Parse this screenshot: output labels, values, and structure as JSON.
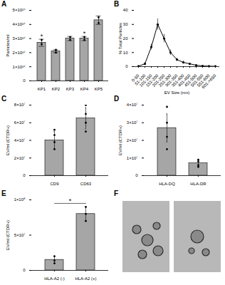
{
  "chart_data": [
    {
      "title": "A",
      "type": "bar",
      "categories": [
        "KP1",
        "KP2",
        "KP3",
        "KP4",
        "KP5"
      ],
      "values": [
        27000000000.0,
        21000000000.0,
        30000000000.0,
        30000000000.0,
        43000000000.0
      ],
      "errors": [
        2500000000.0,
        1000000000.0,
        1500000000.0,
        1500000000.0,
        3000000000.0
      ],
      "points": [
        [
          26000000000.0,
          29000000000.0
        ],
        [
          20000000000.0,
          22000000000.0
        ],
        [
          29000000000.0,
          31000000000.0
        ],
        [
          29000000000.0,
          31000000000.0
        ],
        [
          41000000000.0,
          45000000000.0
        ]
      ],
      "y_label": "Particles/ml",
      "ylim": [
        0,
        50000000000.0
      ],
      "yticks": [
        0,
        {
          "value": 10000000000.0,
          "label": "1×10¹⁰"
        },
        {
          "value": 20000000000.0,
          "label": "2×10¹⁰"
        },
        {
          "value": 30000000000.0,
          "label": "3×10¹⁰"
        },
        {
          "value": 40000000000.0,
          "label": "4×10¹⁰"
        },
        {
          "value": 50000000000.0,
          "label": "5×10¹⁰"
        }
      ],
      "color": "#a6a6a6",
      "annotations": [
        {
          "text": "*",
          "x": [
            "KP1"
          ]
        },
        {
          "text": "*",
          "x": [
            "KP4"
          ]
        }
      ]
    },
    {
      "title": "B",
      "type": "line",
      "categories": [
        "0-50",
        "51-100",
        "101-150",
        "151-200",
        "201-250",
        "251-300",
        "301-350",
        "351-400",
        "401-450",
        "451-500",
        "501-550",
        "551-600",
        "601->650"
      ],
      "values": [
        0.3,
        2,
        14,
        30,
        20,
        10,
        5,
        3,
        2,
        1,
        0.5,
        0.3,
        0.2
      ],
      "errors": [
        0.2,
        1,
        2,
        4,
        3,
        2,
        1,
        1,
        0.5,
        0.5,
        0.3,
        0.2,
        0.2
      ],
      "x_label": "EV Size (nm)",
      "y_label": "% Total Particles",
      "ylim": [
        0,
        40
      ],
      "yticks": [
        0,
        10,
        20,
        30,
        40
      ],
      "color": "#000000",
      "marker": "circle"
    },
    {
      "title": "C",
      "type": "bar",
      "categories": [
        "CD9",
        "CD63"
      ],
      "values": [
        40000000.0,
        65000000.0
      ],
      "errors": [
        10000000.0,
        12000000.0
      ],
      "points": [
        [
          30000000.0,
          38000000.0,
          46000000.0,
          52000000.0
        ],
        [
          50000000.0,
          60000000.0,
          70000000.0,
          80000000.0
        ]
      ],
      "y_label": "EV/ml (CTDR+)",
      "ylim": [
        0,
        80000000.0
      ],
      "yticks": [
        0,
        {
          "value": 20000000.0,
          "label": "2×10⁷"
        },
        {
          "value": 40000000.0,
          "label": "4×10⁷"
        },
        {
          "value": 60000000.0,
          "label": "6×10⁷"
        },
        {
          "value": 80000000.0,
          "label": "8×10⁷"
        }
      ],
      "color": "#a6a6a6"
    },
    {
      "title": "D",
      "type": "bar",
      "categories": [
        "HLA-DQ",
        "HLA-DR"
      ],
      "values": [
        27000000.0,
        7000000.0
      ],
      "errors": [
        8000000.0,
        2000000.0
      ],
      "points": [
        [
          15000000.0,
          22000000.0,
          30000000.0,
          39000000.0
        ],
        [
          5000000.0,
          6000000.0,
          8000000.0,
          9000000.0
        ]
      ],
      "y_label": "EV/ml (CTDR+)",
      "ylim": [
        0,
        40000000.0
      ],
      "yticks": [
        0,
        {
          "value": 10000000.0,
          "label": "1×10⁷"
        },
        {
          "value": 20000000.0,
          "label": "2×10⁷"
        },
        {
          "value": 30000000.0,
          "label": "3×10⁷"
        },
        {
          "value": 40000000.0,
          "label": "4×10⁷"
        }
      ],
      "color": "#a6a6a6"
    },
    {
      "title": "E",
      "type": "bar",
      "categories": [
        "HLA-A2 (-)",
        "HLA-A2 (+)"
      ],
      "values": [
        15000000.0,
        80000000.0
      ],
      "errors": [
        5000000.0,
        10000000.0
      ],
      "points": [
        [
          10000000.0,
          14000000.0,
          20000000.0
        ],
        [
          70000000.0,
          80000000.0,
          90000000.0
        ]
      ],
      "y_label": "EV/ml (CTDR+)",
      "ylim": [
        0,
        100000000.0
      ],
      "yticks": [
        0,
        {
          "value": 50000000.0,
          "label": "5×10⁷"
        },
        {
          "value": 100000000.0,
          "label": "1×10⁸"
        }
      ],
      "color": "#a6a6a6",
      "annotations": [
        {
          "text": "*",
          "x": [
            "HLA-A2 (-)",
            "HLA-A2 (+)"
          ]
        }
      ]
    },
    {
      "title": "F",
      "type": "image"
    }
  ]
}
